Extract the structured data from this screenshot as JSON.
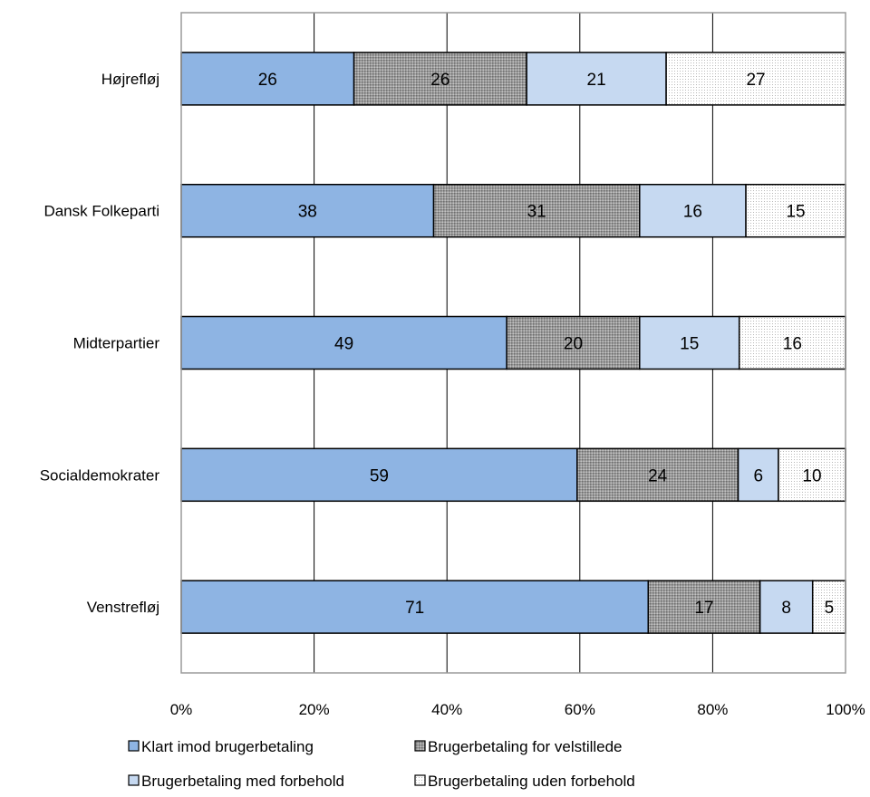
{
  "chart_data": {
    "type": "bar",
    "orientation": "horizontal",
    "stacked": "percent",
    "categories": [
      "Højrefløj",
      "Dansk Folkeparti",
      "Midterpartier",
      "Socialdemokrater",
      "Venstrefløj"
    ],
    "series": [
      {
        "name": "Klart imod brugerbetaling",
        "values": [
          26,
          38,
          49,
          59,
          71
        ],
        "color": "#8EB4E3",
        "pattern": "solid"
      },
      {
        "name": "Brugerbetaling for velstillede",
        "values": [
          26,
          31,
          20,
          24,
          17
        ],
        "color": "#A6A6A6",
        "pattern": "dense-dots"
      },
      {
        "name": "Brugerbetaling med forbehold",
        "values": [
          21,
          16,
          15,
          6,
          8
        ],
        "color": "#C6D9F1",
        "pattern": "solid"
      },
      {
        "name": "Brugerbetaling uden forbehold",
        "values": [
          27,
          15,
          16,
          10,
          5
        ],
        "color": "#FFFFFF",
        "pattern": "light-dots"
      }
    ],
    "xlim": [
      0,
      100
    ],
    "x_ticks": [
      "0%",
      "20%",
      "40%",
      "60%",
      "80%",
      "100%"
    ],
    "grid": "vertical",
    "legend_position": "bottom",
    "title": "",
    "xlabel": "",
    "ylabel": ""
  }
}
